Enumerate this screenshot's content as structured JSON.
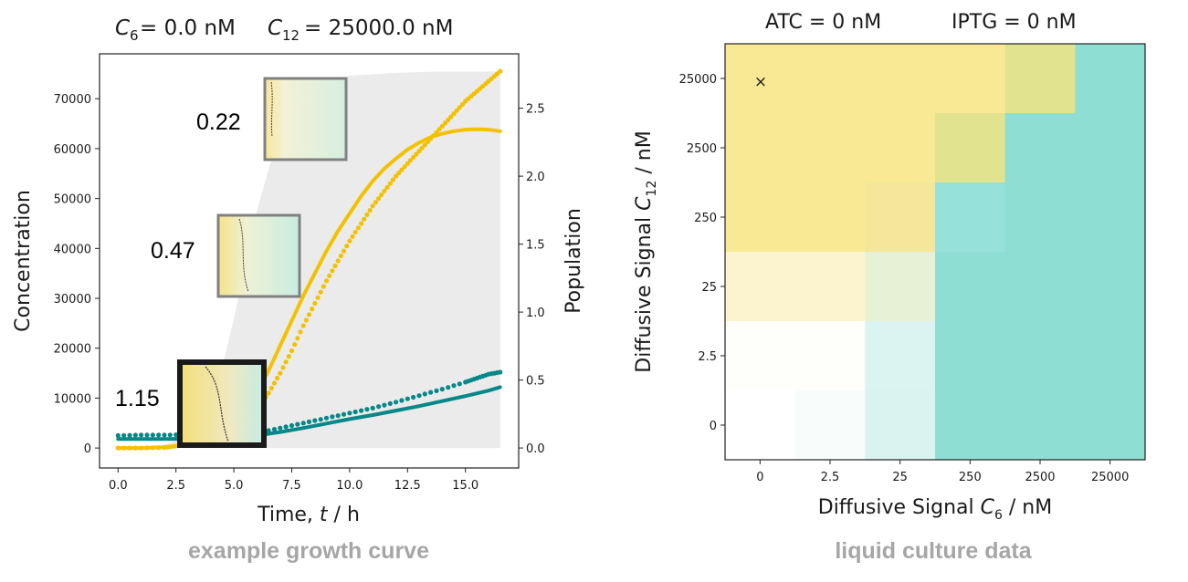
{
  "chart_data": [
    {
      "type": "line",
      "title_parts": {
        "c6": "0.0 nM",
        "c12": "25000.0 nM"
      },
      "xlabel": "Time, t / h",
      "ylabel": "Concentration",
      "y2label": "Population",
      "xlim": [
        -0.8,
        17.3
      ],
      "ylim": [
        -4000,
        79000
      ],
      "y2lim": [
        -0.147,
        2.9
      ],
      "xticks": [
        "0.0",
        "2.5",
        "5.0",
        "7.5",
        "10.0",
        "12.5",
        "15.0"
      ],
      "yticks": [
        "0",
        "10000",
        "20000",
        "30000",
        "40000",
        "50000",
        "60000",
        "70000"
      ],
      "y2ticks": [
        "0.0",
        "0.5",
        "1.0",
        "1.5",
        "2.0",
        "2.5"
      ],
      "colors": {
        "yellow": "#f2c200",
        "teal": "#068788",
        "band": "#ebebeb",
        "inset_border": "#808080",
        "inset_border_strong": "#1a1a1a"
      },
      "series": [
        {
          "values_note": "yellow dotted",
          "x": [
            0,
            1,
            2,
            2.5,
            3,
            3.5,
            4,
            4.5,
            5,
            5.5,
            6,
            6.5,
            7,
            7.5,
            8,
            8.5,
            9,
            9.5,
            10,
            10.5,
            11,
            11.5,
            12,
            12.5,
            13,
            13.5,
            14,
            14.5,
            15,
            15.5,
            16,
            16.5
          ],
          "y": [
            0,
            0,
            100,
            400,
            1000,
            1800,
            2700,
            3500,
            4500,
            6000,
            8000,
            11000,
            15000,
            19500,
            24500,
            29000,
            33500,
            37500,
            41500,
            45000,
            48500,
            51500,
            54500,
            57000,
            59500,
            62000,
            64500,
            67000,
            69500,
            71500,
            73500,
            75500
          ]
        },
        {
          "values_note": "yellow solid",
          "x": [
            0,
            1,
            2,
            2.5,
            3,
            3.5,
            4,
            4.5,
            5,
            5.5,
            6,
            6.5,
            7,
            7.5,
            8,
            8.5,
            9,
            9.5,
            10,
            10.5,
            11,
            11.5,
            12,
            12.5,
            13,
            13.5,
            14,
            14.5,
            15,
            15.5,
            16,
            16.5
          ],
          "y": [
            0,
            0,
            150,
            400,
            900,
            1500,
            2300,
            3400,
            5000,
            7500,
            11000,
            15500,
            20500,
            25500,
            30500,
            35000,
            39500,
            43500,
            47000,
            50500,
            53500,
            56000,
            58000,
            59800,
            61200,
            62300,
            63000,
            63500,
            63800,
            63900,
            63800,
            63500
          ]
        },
        {
          "values_note": "teal dotted",
          "x": [
            0,
            1,
            2,
            3,
            4,
            5,
            6,
            7,
            8,
            9,
            10,
            11,
            12,
            13,
            14,
            15,
            15.5,
            16,
            16.5
          ],
          "y": [
            2500,
            2600,
            2600,
            2700,
            2700,
            2800,
            3000,
            4000,
            5000,
            6000,
            7000,
            8000,
            9200,
            10500,
            11800,
            13200,
            14000,
            14800,
            15200
          ]
        },
        {
          "values_note": "teal solid",
          "x": [
            0,
            2,
            4,
            5,
            6,
            7,
            8,
            9,
            10,
            11,
            12,
            13,
            14,
            15,
            16,
            16.5
          ],
          "y": [
            1800,
            1800,
            1900,
            2200,
            2500,
            3200,
            4000,
            4900,
            5800,
            6600,
            7500,
            8400,
            9400,
            10400,
            11500,
            12200
          ]
        }
      ],
      "population_band": {
        "x": [
          1.5,
          2,
          3,
          4,
          4.5,
          5,
          5.5,
          6,
          6.5,
          7,
          8,
          9,
          10,
          12,
          14,
          16.5
        ],
        "y2": [
          0,
          0.02,
          0.1,
          0.35,
          0.6,
          0.95,
          1.35,
          1.75,
          2.05,
          2.3,
          2.55,
          2.68,
          2.74,
          2.76,
          2.77,
          2.77
        ]
      },
      "insets": [
        {
          "label": "0.22"
        },
        {
          "label": "0.47"
        },
        {
          "label": "1.15"
        }
      ]
    },
    {
      "type": "heatmap",
      "title_parts": {
        "atc": "ATC = 0 nM",
        "iptg": "IPTG = 0 nM"
      },
      "xlabel": "Diffusive Signal C6 / nM",
      "ylabel": "Diffusive Signal C12 / nM",
      "xticks": [
        "0",
        "2.5",
        "25",
        "250",
        "2500",
        "25000"
      ],
      "yticks": [
        "25000",
        "2500",
        "250",
        "25",
        "2.5",
        "0"
      ],
      "marker": {
        "row": 0,
        "col": 0,
        "symbol": "×"
      },
      "cells": [
        [
          "#f9e994",
          "#f9e994",
          "#f9e994",
          "#f9e994",
          "#e2e38f",
          "#8fded4"
        ],
        [
          "#f9e994",
          "#f9e994",
          "#f9e994",
          "#e2e38f",
          "#8fded4",
          "#8fded4"
        ],
        [
          "#f9e994",
          "#f9e994",
          "#f4e79a",
          "#96e1da",
          "#8fded4",
          "#8fded4"
        ],
        [
          "#fbf4cf",
          "#fbf4cf",
          "#e7f1d6",
          "#8fded4",
          "#8fded4",
          "#8fded4"
        ],
        [
          "#fefefb",
          "#fefefb",
          "#dbf4f1",
          "#8fded4",
          "#8fded4",
          "#8fded4"
        ],
        [
          "#ffffff",
          "#f8fcfb",
          "#daf3f0",
          "#8fded4",
          "#8fded4",
          "#8fded4"
        ]
      ]
    }
  ],
  "captions": {
    "left": "example growth curve",
    "right": "liquid culture data"
  }
}
